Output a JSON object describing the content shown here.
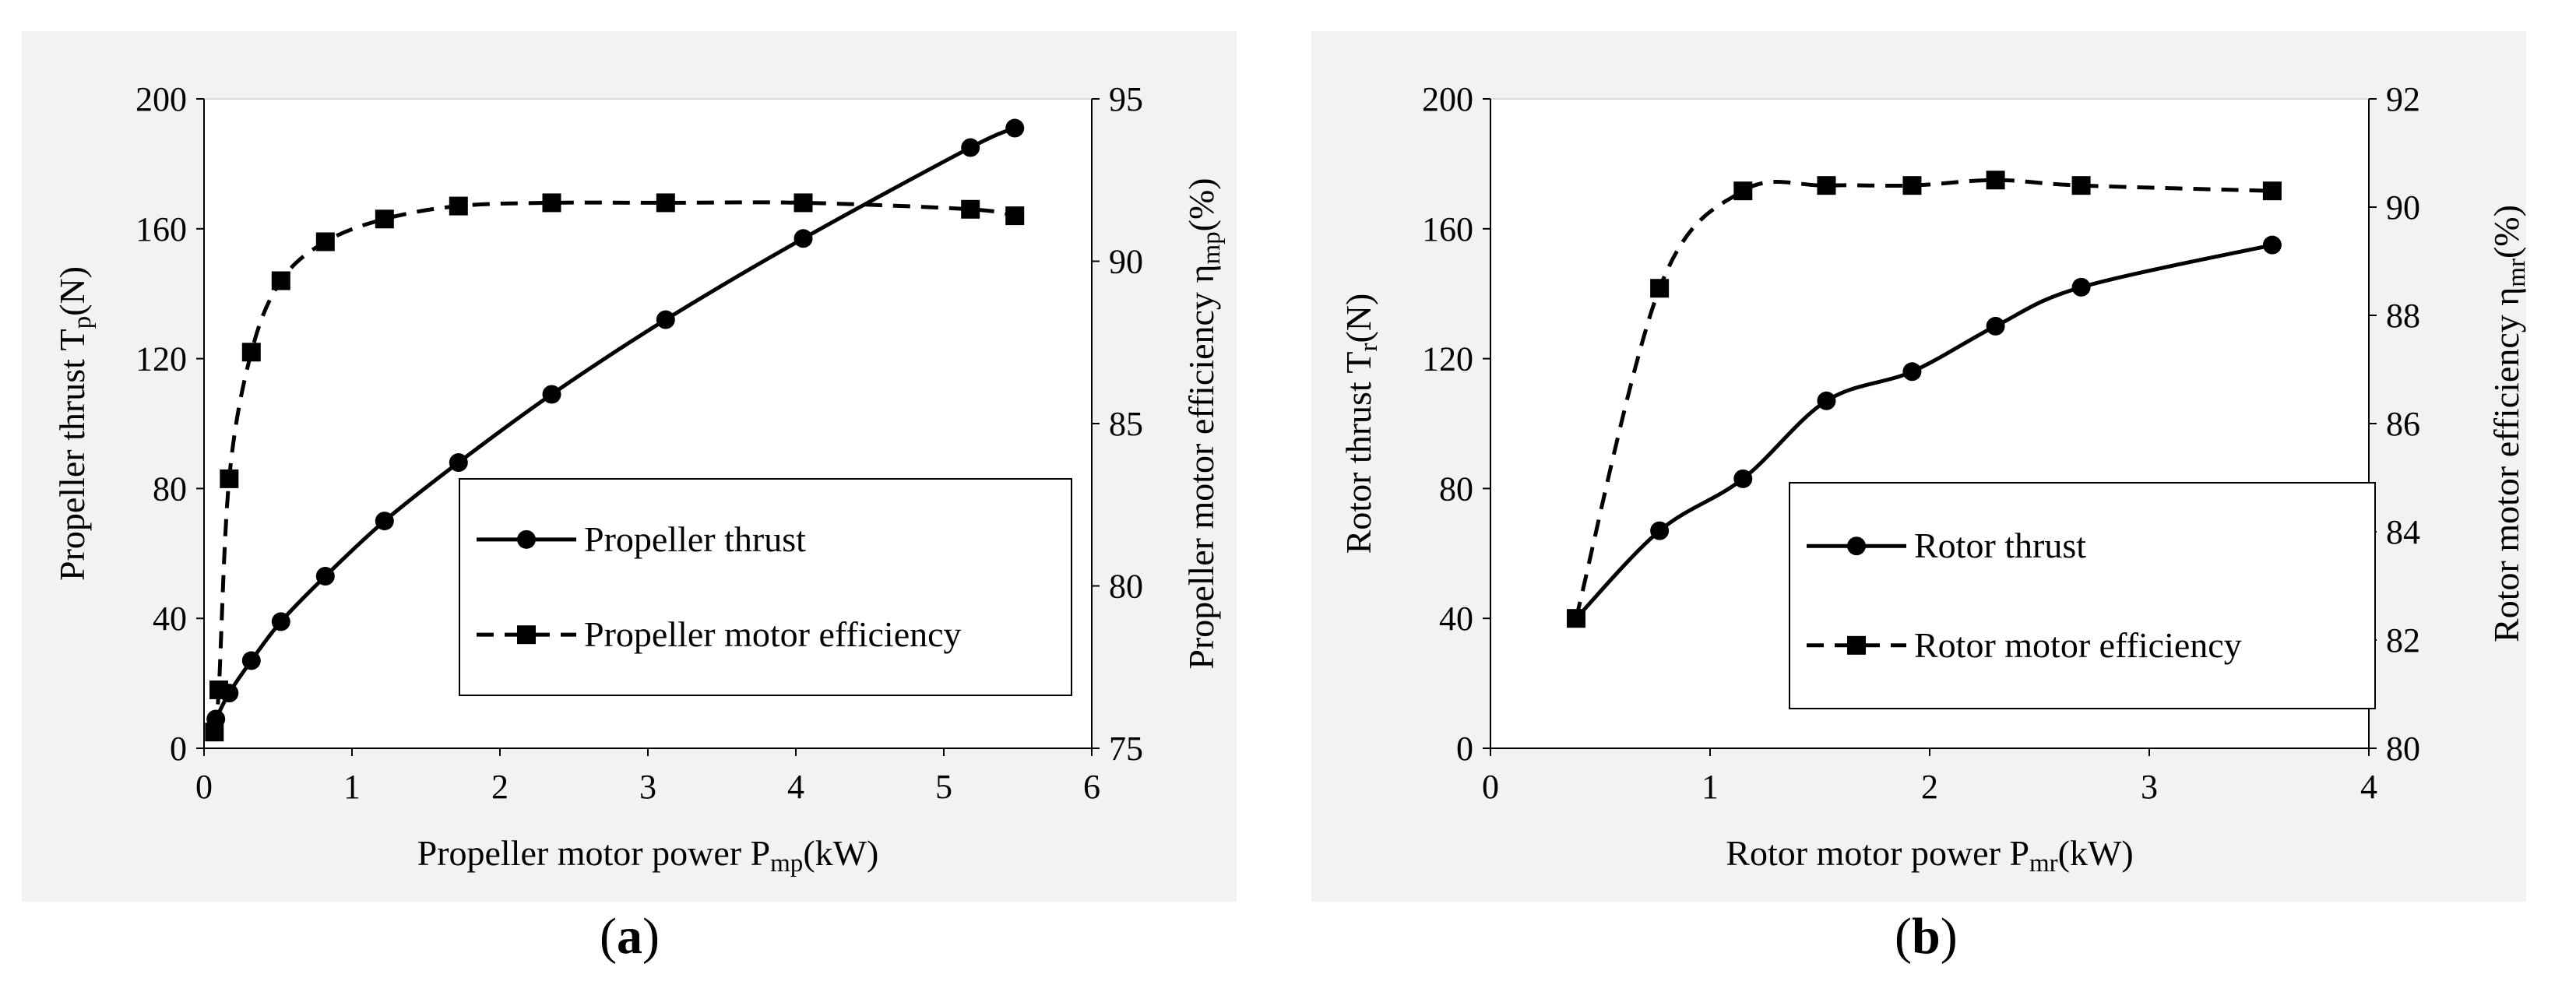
{
  "chart_data": [
    {
      "type": "line",
      "panel_label_open": "(",
      "panel_label_letter": "a",
      "panel_label_close": ")",
      "xlabel": "Propeller motor power P",
      "xlabel_sub": "mp",
      "xlabel_unit": "(kW)",
      "ylabel_left": "Propeller thrust T",
      "ylabel_left_sub": "p",
      "ylabel_left_unit": "(N)",
      "ylabel_right": "Propeller motor efficiency η",
      "ylabel_right_sub": "mp",
      "ylabel_right_unit": "(%)",
      "xlim": [
        0,
        6
      ],
      "x_ticks": [
        0,
        1,
        2,
        3,
        4,
        5,
        6
      ],
      "ylim_left": [
        0,
        200
      ],
      "y_left_ticks": [
        0,
        40,
        80,
        120,
        160,
        200
      ],
      "ylim_right": [
        75,
        95
      ],
      "y_right_ticks": [
        75,
        80,
        85,
        90,
        95
      ],
      "legend_position": "bottom-right",
      "series": [
        {
          "name": "Propeller thrust",
          "axis": "left",
          "style": "solid",
          "marker": "circle",
          "x": [
            0.08,
            0.17,
            0.32,
            0.52,
            0.82,
            1.22,
            1.72,
            2.35,
            3.12,
            4.05,
            5.18,
            5.48
          ],
          "y": [
            9,
            17,
            27,
            39,
            53,
            70,
            88,
            109,
            132,
            157,
            185,
            191
          ]
        },
        {
          "name": "Propeller motor efficiency",
          "axis": "right",
          "style": "dashed",
          "marker": "square",
          "x": [
            0.07,
            0.1,
            0.17,
            0.32,
            0.52,
            0.82,
            1.22,
            1.72,
            2.35,
            3.12,
            4.05,
            5.18,
            5.48
          ],
          "y": [
            75.5,
            76.8,
            83.3,
            87.2,
            89.4,
            90.6,
            91.3,
            91.7,
            91.8,
            91.8,
            91.8,
            91.6,
            91.4
          ]
        }
      ]
    },
    {
      "type": "line",
      "panel_label_open": "(",
      "panel_label_letter": "b",
      "panel_label_close": ")",
      "xlabel": "Rotor motor power P",
      "xlabel_sub": "mr",
      "xlabel_unit": "(kW)",
      "ylabel_left": "Rotor thrust T",
      "ylabel_left_sub": "r",
      "ylabel_left_unit": "(N)",
      "ylabel_right": "Rotor motor efficiency η",
      "ylabel_right_sub": "mr",
      "ylabel_right_unit": "(%)",
      "xlim": [
        0,
        4
      ],
      "x_ticks": [
        0,
        1,
        2,
        3,
        4
      ],
      "ylim_left": [
        0,
        200
      ],
      "y_left_ticks": [
        0,
        40,
        80,
        120,
        160,
        200
      ],
      "ylim_right": [
        80,
        92
      ],
      "y_right_ticks": [
        80,
        82,
        84,
        86,
        88,
        90,
        92
      ],
      "legend_position": "bottom-right",
      "series": [
        {
          "name": "Rotor thrust",
          "axis": "left",
          "style": "solid",
          "marker": "circle",
          "x": [
            0.39,
            0.77,
            1.15,
            1.53,
            1.92,
            2.3,
            2.69,
            3.56
          ],
          "y": [
            40,
            67,
            83,
            107,
            116,
            130,
            142,
            155
          ]
        },
        {
          "name": "Rotor motor efficiency",
          "axis": "right",
          "style": "dashed",
          "marker": "square",
          "x": [
            0.39,
            0.77,
            1.15,
            1.53,
            1.92,
            2.3,
            2.69,
            3.56
          ],
          "y": [
            82.4,
            88.5,
            90.3,
            90.4,
            90.4,
            90.5,
            90.4,
            90.3
          ]
        }
      ]
    }
  ]
}
